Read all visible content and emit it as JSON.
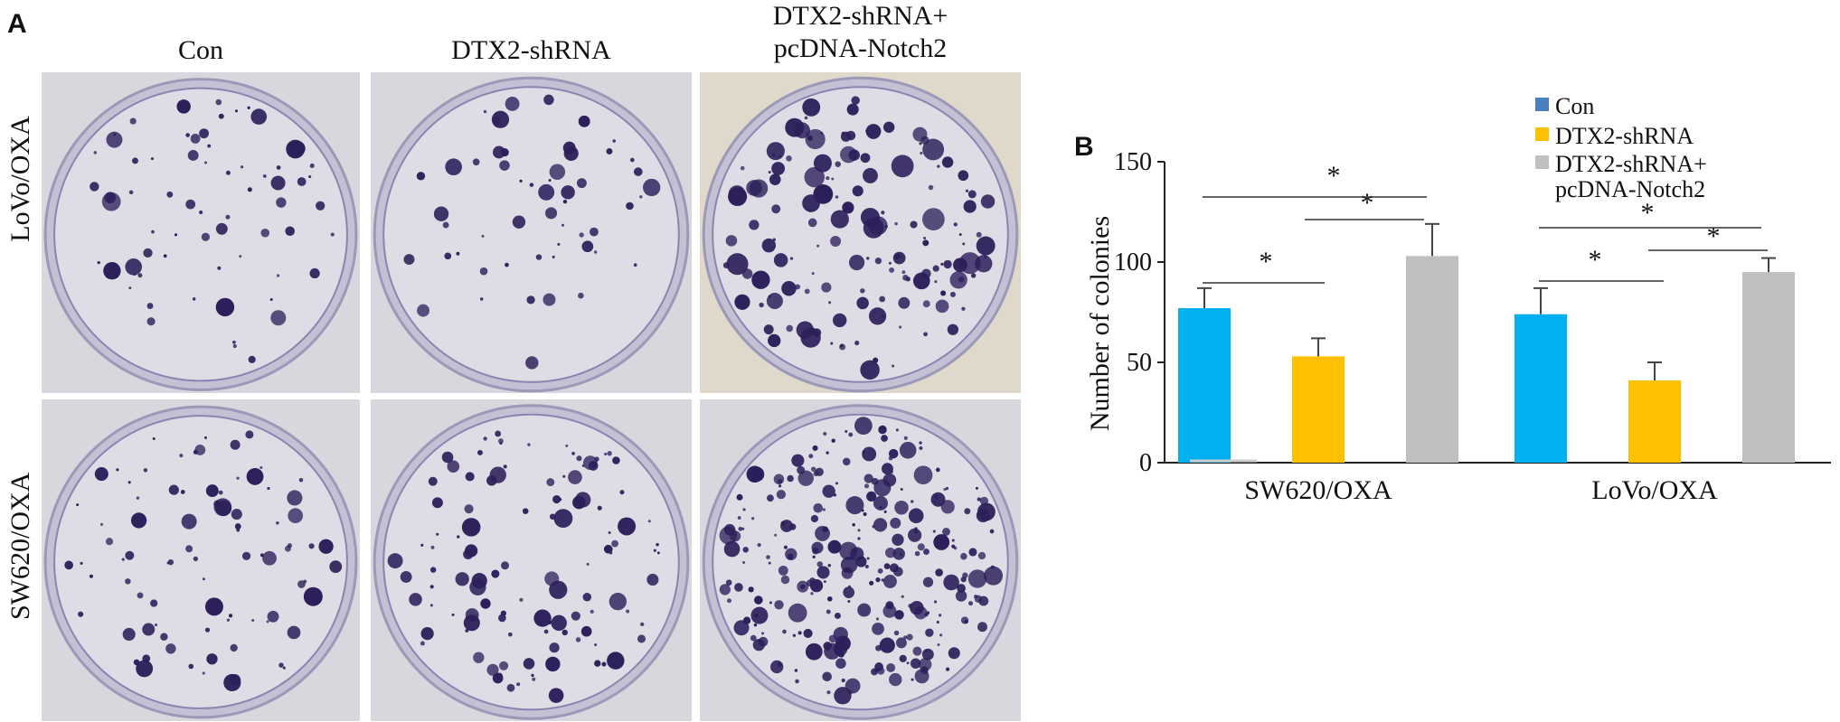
{
  "panel_a": {
    "label": "A",
    "columns": [
      {
        "lines": [
          "Con"
        ]
      },
      {
        "lines": [
          "DTX2-shRNA"
        ]
      },
      {
        "lines": [
          "DTX2-shRNA+",
          "pcDNA-Notch2"
        ]
      }
    ],
    "rows": [
      "LoVo/OXA",
      "SW620/OXA"
    ],
    "stain_color": "#2c1f5a"
  },
  "panel_b": {
    "label": "B",
    "chart_data": {
      "type": "bar",
      "categories": [
        "SW620/OXA",
        "LoVo/OXA"
      ],
      "series": [
        {
          "name": "Con",
          "values": [
            77,
            74
          ],
          "errors": [
            10,
            13
          ],
          "color": "#00b0f0"
        },
        {
          "name": "DTX2-shRNA",
          "values": [
            53,
            41
          ],
          "errors": [
            9,
            9
          ],
          "color": "#ffc000"
        },
        {
          "name": "DTX2-shRNA+\npcDNA-Notch2",
          "values": [
            103,
            95
          ],
          "errors": [
            16,
            7
          ],
          "color": "#bfbfbf"
        }
      ],
      "legend_markers": [
        "#4a7fc1",
        "#ffc000",
        "#bfbfbf"
      ],
      "xlabel": "",
      "ylabel": "Number of colonies",
      "ylim": [
        0,
        150
      ],
      "yticks": [
        0,
        50,
        100,
        150
      ],
      "significance": [
        {
          "group": 0,
          "from": 0,
          "to": 1,
          "label": "*"
        },
        {
          "group": 0,
          "from": 1,
          "to": 2,
          "label": "*"
        },
        {
          "group": 0,
          "from": 0,
          "to": 2,
          "label": "*"
        },
        {
          "group": 1,
          "from": 0,
          "to": 1,
          "label": "*"
        },
        {
          "group": 1,
          "from": 1,
          "to": 2,
          "label": "*"
        },
        {
          "group": 1,
          "from": 0,
          "to": 2,
          "label": "*"
        }
      ]
    }
  }
}
